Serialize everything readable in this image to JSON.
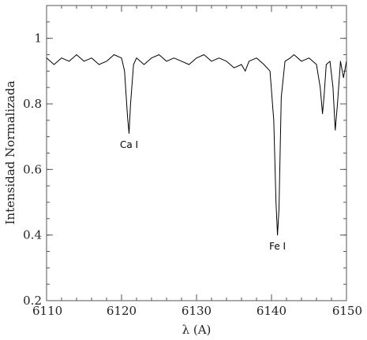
{
  "chart_data": {
    "type": "line",
    "xlabel": "λ (A)",
    "ylabel": "Intensidad Normalizada",
    "xlim": [
      6110,
      6150
    ],
    "ylim": [
      0.2,
      1.1
    ],
    "x_ticks": [
      6110,
      6120,
      6130,
      6140,
      6150
    ],
    "x_tick_labels": [
      "6110",
      "6120",
      "6130",
      "6140",
      "6150"
    ],
    "y_ticks": [
      0.2,
      0.4,
      0.6,
      0.8,
      1.0
    ],
    "y_tick_labels": [
      "0.2",
      "0.4",
      "0.6",
      "0.8",
      "1"
    ],
    "grid": false,
    "line_color": "#000000",
    "series": [
      {
        "x": [
          6110.0,
          6111.0,
          6112.0,
          6113.0,
          6114.0,
          6115.0,
          6116.0,
          6117.0,
          6118.0,
          6119.0,
          6120.0,
          6120.4,
          6120.8,
          6121.0,
          6121.2,
          6121.6,
          6122.0,
          6123.0,
          6124.0,
          6125.0,
          6126.0,
          6127.0,
          6128.0,
          6129.0,
          6130.0,
          6131.0,
          6132.0,
          6133.0,
          6134.0,
          6135.0,
          6136.0,
          6136.5,
          6137.0,
          6138.0,
          6139.0,
          6139.8,
          6140.3,
          6140.6,
          6140.8,
          6141.0,
          6141.3,
          6141.8,
          6142.5,
          6143.0,
          6144.0,
          6145.0,
          6146.0,
          6146.5,
          6146.8,
          6147.0,
          6147.3,
          6147.8,
          6148.2,
          6148.5,
          6148.8,
          6149.2,
          6149.6,
          6150.0
        ],
        "y": [
          0.94,
          0.92,
          0.94,
          0.93,
          0.95,
          0.93,
          0.94,
          0.92,
          0.93,
          0.95,
          0.94,
          0.9,
          0.76,
          0.71,
          0.8,
          0.92,
          0.94,
          0.92,
          0.94,
          0.95,
          0.93,
          0.94,
          0.93,
          0.92,
          0.94,
          0.95,
          0.93,
          0.94,
          0.93,
          0.91,
          0.92,
          0.9,
          0.93,
          0.94,
          0.92,
          0.9,
          0.75,
          0.5,
          0.4,
          0.48,
          0.82,
          0.93,
          0.94,
          0.95,
          0.93,
          0.94,
          0.92,
          0.85,
          0.77,
          0.82,
          0.92,
          0.93,
          0.85,
          0.72,
          0.8,
          0.93,
          0.88,
          0.93
        ]
      }
    ],
    "annotations": [
      {
        "text": "Ca I",
        "x": 6121.0,
        "y": 0.695
      },
      {
        "text": "Fe I",
        "x": 6140.8,
        "y": 0.385
      }
    ]
  }
}
